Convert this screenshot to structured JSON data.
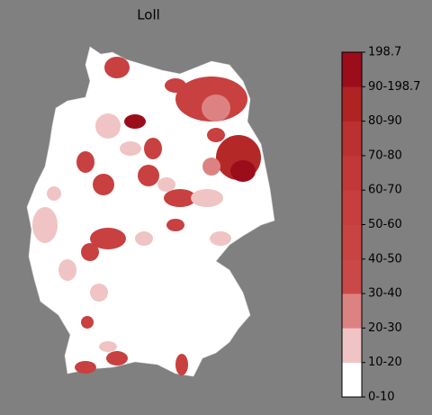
{
  "chart_data": {
    "type": "choropleth",
    "title": "Loll",
    "colorbar": {
      "labels": [
        "0-10",
        "10-20",
        "20-30",
        "30-40",
        "40-50",
        "50-60",
        "60-70",
        "70-80",
        "80-90",
        "90-198.7",
        "198.7"
      ],
      "colors": [
        "#ffffff",
        "#f0c4c4",
        "#dd8282",
        "#cb4848",
        "#c94343",
        "#c63e3e",
        "#c23838",
        "#bb3030",
        "#b02323",
        "#9c0d1c"
      ]
    }
  }
}
